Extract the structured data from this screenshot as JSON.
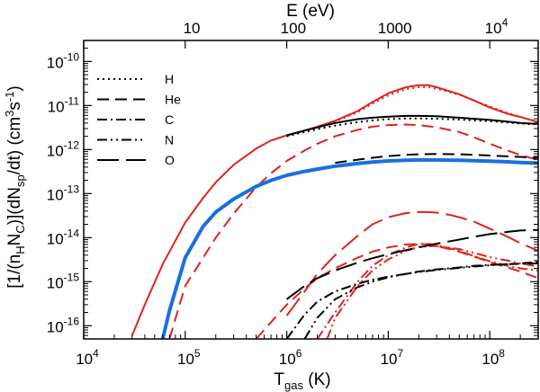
{
  "chart_data": {
    "type": "line",
    "xscale": "log",
    "yscale": "log",
    "xlim": [
      10000,
      300000000
    ],
    "ylim": [
      5e-17,
      3e-10
    ],
    "grid": false,
    "xlabel": {
      "base": "T",
      "sub": "gas",
      "tail": " (K)"
    },
    "ylabel": {
      "parts": [
        {
          "t": "[1/(n"
        },
        {
          "t": "H",
          "s": "sub"
        },
        {
          "t": "N"
        },
        {
          "t": "C",
          "s": "sub"
        },
        {
          "t": ")](dN"
        },
        {
          "t": "sp",
          "s": "sub"
        },
        {
          "t": "/dt)  (cm"
        },
        {
          "t": "3",
          "s": "sup"
        },
        {
          "t": "s"
        },
        {
          "t": "-1",
          "s": "sup"
        },
        {
          "t": ")"
        }
      ]
    },
    "top_axis": {
      "label": "E (eV)",
      "ticks": [
        {
          "label": "10",
          "x": 116000
        },
        {
          "label": "100",
          "x": 1160000
        },
        {
          "label": "1000",
          "x": 11600000
        },
        {
          "label": "10",
          "sup": "4",
          "x": 116000000
        }
      ]
    },
    "x_ticks": [
      {
        "base": "10",
        "exp": "4",
        "value": 10000
      },
      {
        "base": "10",
        "exp": "5",
        "value": 100000
      },
      {
        "base": "10",
        "exp": "6",
        "value": 1000000
      },
      {
        "base": "10",
        "exp": "7",
        "value": 10000000
      },
      {
        "base": "10",
        "exp": "8",
        "value": 100000000
      }
    ],
    "y_ticks": [
      {
        "base": "10",
        "exp": "-16",
        "value": 1e-16
      },
      {
        "base": "10",
        "exp": "-15",
        "value": 1e-15
      },
      {
        "base": "10",
        "exp": "-14",
        "value": 1e-14
      },
      {
        "base": "10",
        "exp": "-13",
        "value": 1e-13
      },
      {
        "base": "10",
        "exp": "-12",
        "value": 1e-12
      },
      {
        "base": "10",
        "exp": "-11",
        "value": 1e-11
      },
      {
        "base": "10",
        "exp": "-10",
        "value": 1e-10
      }
    ],
    "legend": {
      "placement": "top-left",
      "entries": [
        {
          "label": "H",
          "style": "dotted"
        },
        {
          "label": "He",
          "style": "dashed"
        },
        {
          "label": "C",
          "style": "dashdot"
        },
        {
          "label": "N",
          "style": "dashdotdot"
        },
        {
          "label": "O",
          "style": "longdash"
        }
      ]
    },
    "series": [
      {
        "color": "#e0221c",
        "style": "solid",
        "width": 2,
        "x": [
          30000,
          40000,
          60000,
          100000,
          150000,
          200000,
          300000,
          500000,
          700000,
          1000000,
          1500000,
          2000000,
          3000000,
          5000000,
          7000000,
          10000000,
          15000000,
          20000000,
          25000000,
          30000000,
          50000000,
          70000000,
          100000000,
          150000000,
          200000000,
          300000000
        ],
        "y": [
          6e-17,
          3e-16,
          2.5e-15,
          2.2e-14,
          8e-14,
          1.8e-13,
          4.5e-13,
          1.05e-12,
          1.6e-12,
          2.1e-12,
          2.7e-12,
          3.3e-12,
          4.5e-12,
          7.5e-12,
          1.2e-11,
          1.9e-11,
          2.6e-11,
          2.9e-11,
          2.9e-11,
          2.6e-11,
          1.8e-11,
          1.3e-11,
          9e-12,
          6.5e-12,
          5.5e-12,
          4.2e-12
        ]
      },
      {
        "color": "#e0221c",
        "style": "dotted",
        "width": 2,
        "x": [
          1000000,
          1500000,
          2000000,
          3000000,
          5000000,
          7000000,
          10000000,
          15000000,
          20000000,
          25000000,
          30000000,
          50000000,
          70000000,
          100000000,
          150000000,
          200000000,
          300000000
        ],
        "y": [
          2.1e-12,
          2.65e-12,
          3.2e-12,
          4.3e-12,
          7e-12,
          1.1e-11,
          1.7e-11,
          2.35e-11,
          2.6e-11,
          2.6e-11,
          2.4e-11,
          1.75e-11,
          1.3e-11,
          9.5e-12,
          6.8e-12,
          5.5e-12,
          4.3e-12
        ]
      },
      {
        "color": "#e0221c",
        "style": "dashed",
        "width": 2,
        "x": [
          70000,
          100000,
          150000,
          200000,
          300000,
          500000,
          700000,
          1000000,
          1500000,
          2000000,
          3000000,
          5000000,
          7000000,
          10000000,
          15000000,
          20000000,
          30000000,
          50000000,
          70000000,
          100000000,
          150000000,
          200000000,
          300000000
        ],
        "y": [
          5e-17,
          8e-16,
          3.5e-15,
          1e-14,
          3.5e-14,
          1.4e-13,
          2.9e-13,
          5.5e-13,
          9.5e-13,
          1.35e-12,
          2e-12,
          2.8e-12,
          3.3e-12,
          3.6e-12,
          3.7e-12,
          3.6e-12,
          3.2e-12,
          2.5e-12,
          1.9e-12,
          1.35e-12,
          9.5e-13,
          7.5e-13,
          5.8e-13
        ]
      },
      {
        "color": "#000000",
        "style": "solid",
        "width": 2,
        "x": [
          1000000,
          1500000,
          2000000,
          3000000,
          5000000,
          7000000,
          10000000,
          15000000,
          20000000,
          30000000,
          50000000,
          70000000,
          100000000,
          150000000,
          200000000,
          300000000
        ],
        "y": [
          2.1e-12,
          2.7e-12,
          3.2e-12,
          4e-12,
          4.9e-12,
          5.3e-12,
          5.6e-12,
          5.8e-12,
          5.8e-12,
          5.7e-12,
          5.3e-12,
          5e-12,
          4.7e-12,
          4.3e-12,
          4e-12,
          3.8e-12
        ]
      },
      {
        "color": "#000000",
        "style": "dotted",
        "width": 2,
        "x": [
          1000000,
          1500000,
          2000000,
          3000000,
          5000000,
          7000000,
          10000000,
          15000000,
          20000000,
          30000000,
          50000000,
          70000000,
          100000000,
          150000000,
          200000000,
          300000000
        ],
        "y": [
          2e-12,
          2.5e-12,
          2.9e-12,
          3.5e-12,
          4.2e-12,
          4.6e-12,
          4.9e-12,
          5.1e-12,
          5.1e-12,
          5e-12,
          4.8e-12,
          4.6e-12,
          4.4e-12,
          4.1e-12,
          3.9e-12,
          3.7e-12
        ]
      },
      {
        "color": "#000000",
        "style": "dashed",
        "width": 2,
        "x": [
          3000000,
          5000000,
          7000000,
          10000000,
          15000000,
          20000000,
          30000000,
          50000000,
          70000000,
          100000000,
          150000000,
          200000000,
          300000000
        ],
        "y": [
          5e-13,
          5.9e-13,
          6.5e-13,
          7.1e-13,
          7.6e-13,
          7.8e-13,
          7.9e-13,
          7.8e-13,
          7.6e-13,
          7.3e-13,
          7e-13,
          6.8e-13,
          6.5e-13
        ]
      },
      {
        "color": "#1a6fe0",
        "style": "solid",
        "width": 4,
        "x": [
          60000,
          70000,
          100000,
          150000,
          200000,
          300000,
          500000,
          700000,
          1000000,
          1500000,
          2000000,
          3000000,
          5000000,
          7000000,
          10000000,
          15000000,
          20000000,
          30000000,
          50000000,
          70000000,
          100000000,
          150000000,
          200000000,
          300000000
        ],
        "y": [
          5e-17,
          2.2e-16,
          3.5e-15,
          1.8e-14,
          3.8e-14,
          7.5e-14,
          1.45e-13,
          2e-13,
          2.6e-13,
          3.2e-13,
          3.6e-13,
          4.2e-13,
          4.8e-13,
          5.2e-13,
          5.5e-13,
          5.7e-13,
          5.8e-13,
          5.8e-13,
          5.7e-13,
          5.6e-13,
          5.45e-13,
          5.25e-13,
          5.1e-13,
          4.9e-13
        ]
      },
      {
        "color": "#e0221c",
        "style": "longdash",
        "width": 2,
        "x": [
          1000000,
          1500000,
          2000000,
          3000000,
          5000000,
          7000000,
          10000000,
          15000000,
          20000000,
          25000000,
          30000000,
          40000000,
          50000000,
          70000000,
          100000000,
          150000000,
          200000000,
          300000000
        ],
        "y": [
          1.7e-16,
          6e-16,
          1.5e-15,
          4e-15,
          1.1e-14,
          2e-14,
          2.9e-14,
          3.6e-14,
          3.8e-14,
          3.8e-14,
          3.7e-14,
          3.3e-14,
          2.9e-14,
          2.3e-14,
          1.6e-14,
          1.05e-14,
          7.5e-15,
          5e-15
        ]
      },
      {
        "color": "#e0221c",
        "style": "dashed",
        "width": 2,
        "x": [
          500000,
          700000,
          1000000,
          1500000,
          2000000,
          3000000,
          5000000,
          7000000,
          10000000,
          15000000,
          20000000,
          25000000,
          30000000,
          50000000,
          70000000,
          100000000,
          150000000,
          200000000,
          300000000
        ],
        "y": [
          5e-17,
          1.2e-16,
          3e-16,
          7e-16,
          1.2e-15,
          2e-15,
          3.5e-15,
          4.8e-15,
          6e-15,
          7e-15,
          7.2e-15,
          7e-15,
          6.5e-15,
          4.8e-15,
          3.7e-15,
          2.8e-15,
          2.1e-15,
          1.7e-15,
          1.2e-15
        ]
      },
      {
        "color": "#e0221c",
        "style": "dashdot",
        "width": 2,
        "x": [
          2000000,
          3000000,
          5000000,
          7000000,
          10000000,
          15000000,
          20000000,
          25000000,
          30000000,
          50000000,
          70000000,
          100000000,
          150000000,
          200000000,
          300000000
        ],
        "y": [
          5e-17,
          2e-16,
          1e-15,
          2.3e-15,
          4e-15,
          6e-15,
          7.2e-15,
          7.2e-15,
          6.8e-15,
          5e-15,
          3.8e-15,
          2.9e-15,
          2.3e-15,
          2e-15,
          1.8e-15
        ]
      },
      {
        "color": "#e0221c",
        "style": "dashdotdot",
        "width": 2,
        "x": [
          2500000,
          3000000,
          5000000,
          7000000,
          10000000,
          15000000,
          20000000,
          30000000,
          50000000,
          70000000,
          100000000,
          150000000,
          200000000,
          300000000
        ],
        "y": [
          5e-17,
          1.5e-16,
          8e-16,
          1.8e-15,
          3.2e-15,
          5e-15,
          6.2e-15,
          6.5e-15,
          5.5e-15,
          4.5e-15,
          3.6e-15,
          3e-15,
          2.6e-15,
          2.2e-15
        ]
      },
      {
        "color": "#000000",
        "style": "longdash",
        "width": 2,
        "x": [
          1000000,
          1500000,
          2000000,
          3000000,
          5000000,
          7000000,
          10000000,
          15000000,
          20000000,
          30000000,
          50000000,
          70000000,
          100000000,
          150000000,
          200000000,
          250000000,
          300000000
        ],
        "y": [
          4e-16,
          8e-16,
          1.2e-15,
          1.8e-15,
          2.7e-15,
          3.4e-15,
          4.2e-15,
          5.2e-15,
          6e-15,
          7.3e-15,
          9e-15,
          1.05e-14,
          1.2e-14,
          1.35e-14,
          1.45e-14,
          1.48e-14,
          1.5e-14
        ]
      },
      {
        "color": "#000000",
        "style": "dashdot",
        "width": 2,
        "x": [
          1000000,
          1500000,
          2000000,
          3000000,
          5000000,
          7000000,
          10000000,
          15000000,
          20000000,
          30000000,
          50000000,
          70000000,
          100000000,
          150000000,
          200000000,
          300000000
        ],
        "y": [
          5e-17,
          1.8e-16,
          3.5e-16,
          6e-16,
          9e-16,
          1.1e-15,
          1.3e-15,
          1.5e-15,
          1.7e-15,
          1.9e-15,
          2.1e-15,
          2.3e-15,
          2.4e-15,
          2.5e-15,
          2.55e-15,
          2.6e-15
        ]
      },
      {
        "color": "#000000",
        "style": "dashdotdot",
        "width": 2,
        "x": [
          1500000,
          2000000,
          3000000,
          5000000,
          7000000,
          10000000,
          15000000,
          20000000,
          30000000,
          50000000,
          70000000,
          100000000,
          150000000,
          200000000,
          300000000
        ],
        "y": [
          5e-17,
          1.5e-16,
          4e-16,
          7.5e-16,
          1e-15,
          1.25e-15,
          1.5e-15,
          1.65e-15,
          1.85e-15,
          2.05e-15,
          2.2e-15,
          2.35e-15,
          2.5e-15,
          2.6e-15,
          2.8e-15
        ]
      }
    ]
  }
}
